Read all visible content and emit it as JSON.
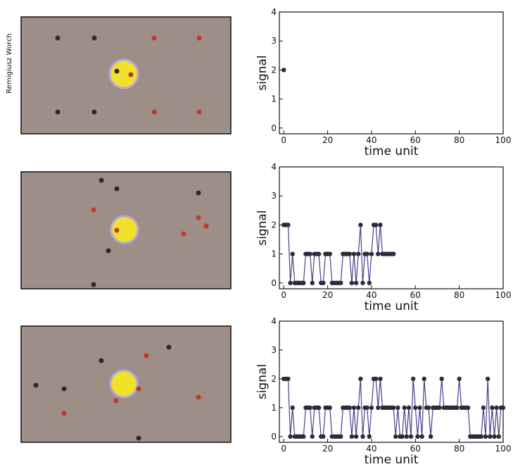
{
  "credit": "Remigiusz Worch",
  "chart_data": [
    {
      "type": "line",
      "xlabel": "time unit",
      "ylabel": "signal",
      "color": "#4a3f8c",
      "marker_color": "#2b2b3a",
      "xlim": [
        -2,
        100
      ],
      "ylim": [
        -0.2,
        4
      ],
      "xticks": [
        0,
        20,
        40,
        60,
        80,
        100
      ],
      "yticks": [
        0,
        1,
        2,
        3,
        4
      ],
      "x": [
        0
      ],
      "values": [
        2
      ]
    },
    {
      "type": "line",
      "xlabel": "time unit",
      "ylabel": "signal",
      "color": "#4a3f8c",
      "marker_color": "#2b2b3a",
      "xlim": [
        -2,
        100
      ],
      "ylim": [
        -0.2,
        4
      ],
      "xticks": [
        0,
        20,
        40,
        60,
        80,
        100
      ],
      "yticks": [
        0,
        1,
        2,
        3,
        4
      ],
      "x": [
        0,
        1,
        2,
        3,
        4,
        5,
        6,
        7,
        8,
        9,
        10,
        11,
        12,
        13,
        14,
        15,
        16,
        17,
        18,
        19,
        20,
        21,
        22,
        23,
        24,
        25,
        26,
        27,
        28,
        29,
        30,
        31,
        32,
        33,
        34,
        35,
        36,
        37,
        38,
        39,
        40,
        41,
        42,
        43,
        44,
        45,
        46,
        47,
        48,
        49,
        50
      ],
      "values": [
        2,
        2,
        2,
        0,
        1,
        0,
        0,
        0,
        0,
        0,
        1,
        1,
        1,
        0,
        1,
        1,
        1,
        0,
        0,
        1,
        1,
        1,
        0,
        0,
        0,
        0,
        0,
        1,
        1,
        1,
        1,
        0,
        1,
        0,
        1,
        2,
        0,
        1,
        1,
        0,
        1,
        2,
        2,
        1,
        2,
        1,
        1,
        1,
        1,
        1,
        1
      ]
    },
    {
      "type": "line",
      "xlabel": "time unit",
      "ylabel": "signal",
      "color": "#4a3f8c",
      "marker_color": "#2b2b3a",
      "xlim": [
        -2,
        100
      ],
      "ylim": [
        -0.2,
        4
      ],
      "xticks": [
        0,
        20,
        40,
        60,
        80,
        100
      ],
      "yticks": [
        0,
        1,
        2,
        3,
        4
      ],
      "x": [
        0,
        1,
        2,
        3,
        4,
        5,
        6,
        7,
        8,
        9,
        10,
        11,
        12,
        13,
        14,
        15,
        16,
        17,
        18,
        19,
        20,
        21,
        22,
        23,
        24,
        25,
        26,
        27,
        28,
        29,
        30,
        31,
        32,
        33,
        34,
        35,
        36,
        37,
        38,
        39,
        40,
        41,
        42,
        43,
        44,
        45,
        46,
        47,
        48,
        49,
        50,
        51,
        52,
        53,
        54,
        55,
        56,
        57,
        58,
        59,
        60,
        61,
        62,
        63,
        64,
        65,
        66,
        67,
        68,
        69,
        70,
        71,
        72,
        73,
        74,
        75,
        76,
        77,
        78,
        79,
        80,
        81,
        82,
        83,
        84,
        85,
        86,
        87,
        88,
        89,
        90,
        91,
        92,
        93,
        94,
        95,
        96,
        97,
        98,
        99,
        100
      ],
      "values": [
        2,
        2,
        2,
        0,
        1,
        0,
        0,
        0,
        0,
        0,
        1,
        1,
        1,
        0,
        1,
        1,
        1,
        0,
        0,
        1,
        1,
        1,
        0,
        0,
        0,
        0,
        0,
        1,
        1,
        1,
        1,
        0,
        1,
        0,
        1,
        2,
        0,
        1,
        1,
        0,
        1,
        2,
        2,
        1,
        2,
        1,
        1,
        1,
        1,
        1,
        1,
        0,
        1,
        0,
        0,
        1,
        0,
        1,
        0,
        2,
        1,
        0,
        1,
        0,
        2,
        1,
        1,
        0,
        1,
        1,
        1,
        1,
        2,
        1,
        1,
        1,
        1,
        1,
        1,
        1,
        2,
        1,
        1,
        1,
        1,
        0,
        0,
        0,
        0,
        0,
        0,
        1,
        0,
        2,
        0,
        1,
        0,
        1,
        0,
        1,
        1
      ]
    }
  ]
}
